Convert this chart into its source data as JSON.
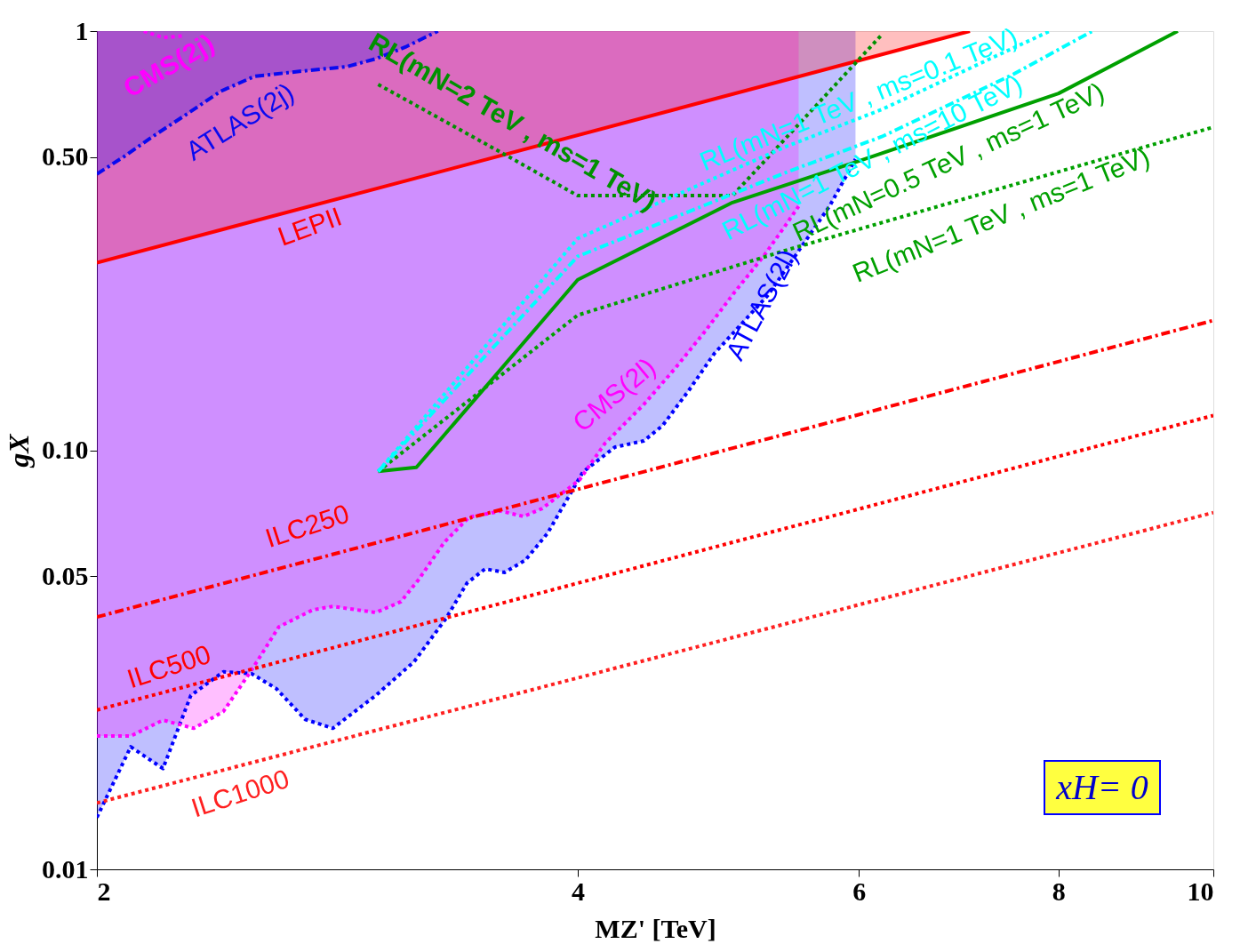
{
  "chart_data": {
    "type": "line",
    "xlabel": "MZ' [TeV]",
    "ylabel": "gX",
    "xlim": [
      2,
      10
    ],
    "ylim": [
      0.01,
      1
    ],
    "log": "xy",
    "xticks": [
      2,
      4,
      6,
      8,
      10
    ],
    "yticks": [
      0.01,
      0.05,
      {
        "value": 0.1,
        "label": "0.10"
      },
      {
        "value": 0.5,
        "label": "0.50"
      },
      1
    ],
    "annotations": [
      "xH= 0"
    ],
    "series": [
      {
        "name": "ATLAS(2l)",
        "color": "#0000ff",
        "line_style": "dotted",
        "x": [
          2.0,
          2.1,
          2.2,
          2.29,
          2.4,
          2.5,
          2.59,
          2.7,
          2.81,
          2.99,
          3.16,
          3.31,
          3.41,
          3.5,
          3.6,
          3.71,
          3.83,
          4.03,
          4.22,
          4.4,
          4.52,
          4.7,
          4.87,
          5.26,
          5.52,
          5.75,
          5.97
        ],
        "values": [
          0.0133,
          0.0196,
          0.0174,
          0.026,
          0.0296,
          0.0293,
          0.027,
          0.0228,
          0.0217,
          0.026,
          0.0313,
          0.0398,
          0.0482,
          0.0521,
          0.0511,
          0.0547,
          0.0634,
          0.0887,
          0.1017,
          0.1053,
          0.1144,
          0.1397,
          0.17,
          0.234,
          0.305,
          0.382,
          0.495
        ],
        "lower": [
          0.0133,
          0.0196,
          0.0174,
          0.026,
          0.0296,
          0.0293,
          0.027,
          0.0228,
          0.0217,
          0.026,
          0.0313,
          0.0398,
          0.0482,
          0.0521,
          0.0511,
          0.0547,
          0.0634,
          0.0887,
          0.1017,
          0.1053,
          0.1144,
          0.1397,
          0.17,
          0.234,
          0.305,
          0.382,
          0.495
        ],
        "upper": [
          1,
          1,
          1,
          1,
          1,
          1,
          1,
          1,
          1,
          1,
          1,
          1,
          1,
          1,
          1,
          1,
          1,
          1,
          1,
          1,
          1,
          1,
          1,
          1,
          1,
          1,
          1
        ]
      },
      {
        "name": "CMS(2l)",
        "color": "#ff00ff",
        "line_style": "dotted",
        "x": [
          2.0,
          2.1,
          2.2,
          2.3,
          2.4,
          2.5,
          2.6,
          2.73,
          2.81,
          2.99,
          3.1,
          3.18,
          3.3,
          3.42,
          3.58,
          3.7,
          3.8,
          4.01,
          4.16,
          4.4,
          4.6,
          4.8,
          5.01,
          5.24,
          5.4,
          5.5
        ],
        "values": [
          0.0208,
          0.0208,
          0.0227,
          0.0217,
          0.0238,
          0.0299,
          0.0379,
          0.0416,
          0.0424,
          0.041,
          0.0435,
          0.0491,
          0.0603,
          0.0692,
          0.0716,
          0.0695,
          0.0726,
          0.0849,
          0.1038,
          0.1286,
          0.1563,
          0.191,
          0.237,
          0.2935,
          0.345,
          0.382
        ],
        "lower": [
          0.0208,
          0.0208,
          0.0227,
          0.0217,
          0.0238,
          0.0299,
          0.0379,
          0.0416,
          0.0424,
          0.041,
          0.0435,
          0.0491,
          0.0603,
          0.0692,
          0.0716,
          0.0695,
          0.0726,
          0.0849,
          0.1038,
          0.1286,
          0.1563,
          0.191,
          0.237,
          0.2935,
          0.345,
          0.382
        ],
        "upper": [
          1,
          1,
          1,
          1,
          1,
          1,
          1,
          1,
          1,
          1,
          1,
          1,
          1,
          1,
          1,
          1,
          1,
          1,
          1,
          1,
          1,
          1,
          1,
          1,
          1,
          1
        ]
      },
      {
        "name": "LEPII",
        "color": "#ff0000",
        "line_style": "solid",
        "x": [
          2.0,
          7.04
        ],
        "values": [
          0.28,
          1.0
        ],
        "lower": [
          0.28,
          1.0
        ],
        "upper": [
          1,
          1
        ]
      },
      {
        "name": "ATLAS(2j)",
        "color": "#0a0af0",
        "line_style": "dashed",
        "x": [
          2.0,
          2.08,
          2.17,
          2.27,
          2.39,
          2.51,
          2.69,
          2.87,
          2.99,
          3.12,
          3.27
        ],
        "values": [
          0.456,
          0.502,
          0.562,
          0.629,
          0.718,
          0.78,
          0.803,
          0.823,
          0.859,
          0.916,
          1.0
        ],
        "lower": [
          0.456,
          0.502,
          0.562,
          0.629,
          0.718,
          0.78,
          0.803,
          0.823,
          0.859,
          0.916,
          1.0
        ],
        "upper": [
          1,
          1,
          1,
          1,
          1,
          1,
          1,
          1,
          1,
          1,
          1
        ]
      },
      {
        "name": "CMS(2j)",
        "color": "#ff00ff",
        "line_style": "dotted",
        "x": [
          2.14,
          2.2,
          2.27
        ],
        "values": [
          1.0,
          0.965,
          0.975
        ]
      },
      {
        "name": "ILC250",
        "color": "#ff0000",
        "line_style": "dashed",
        "x": [
          2,
          10
        ],
        "values": [
          0.04,
          0.204
        ]
      },
      {
        "name": "ILC500",
        "color": "#ff0000",
        "line_style": "dotted",
        "x": [
          2,
          10
        ],
        "values": [
          0.024,
          0.121
        ]
      },
      {
        "name": "ILC1000",
        "color": "#ff2020",
        "line_style": "dotted",
        "x": [
          2,
          10
        ],
        "values": [
          0.0144,
          0.071
        ]
      },
      {
        "name": "RL(mN=0.5 TeV , ms=1 TeV)",
        "color": "#00a000",
        "line_style": "solid",
        "x": [
          3.0,
          3.17,
          4.0,
          5.0,
          6.0,
          8.0,
          9.5
        ],
        "values": [
          0.089,
          0.091,
          0.255,
          0.39,
          0.49,
          0.71,
          1.0
        ]
      },
      {
        "name": "RL(mN=1 TeV , ms=1 TeV)",
        "color": "#00a000",
        "line_style": "dotted",
        "x": [
          3.0,
          4.0,
          5.4,
          10
        ],
        "values": [
          0.089,
          0.21,
          0.3,
          0.59
        ]
      },
      {
        "name": "RL(mN=2 TeV , ms=1 TeV)",
        "color": "#009000",
        "line_style": "dotted",
        "x": [
          3.0,
          3.61,
          4.0,
          5.0,
          6.2
        ],
        "values": [
          0.746,
          0.505,
          0.405,
          0.405,
          0.98
        ]
      },
      {
        "name": "RL(mN=1 TeV , ms=0.1 TeV)",
        "color": "#00ffff",
        "line_style": "dotted",
        "x": [
          3.0,
          4.0,
          5.4,
          6.2,
          7.3,
          7.9
        ],
        "values": [
          0.089,
          0.32,
          0.53,
          0.65,
          0.87,
          1.0
        ]
      },
      {
        "name": "RL(mN=1 TeV , ms=10 TeV)",
        "color": "#00ffff",
        "line_style": "dashed",
        "x": [
          3.0,
          4.0,
          5.4,
          6.2,
          7.5,
          8.4
        ],
        "values": [
          0.089,
          0.29,
          0.46,
          0.56,
          0.79,
          1.0
        ]
      }
    ]
  }
}
